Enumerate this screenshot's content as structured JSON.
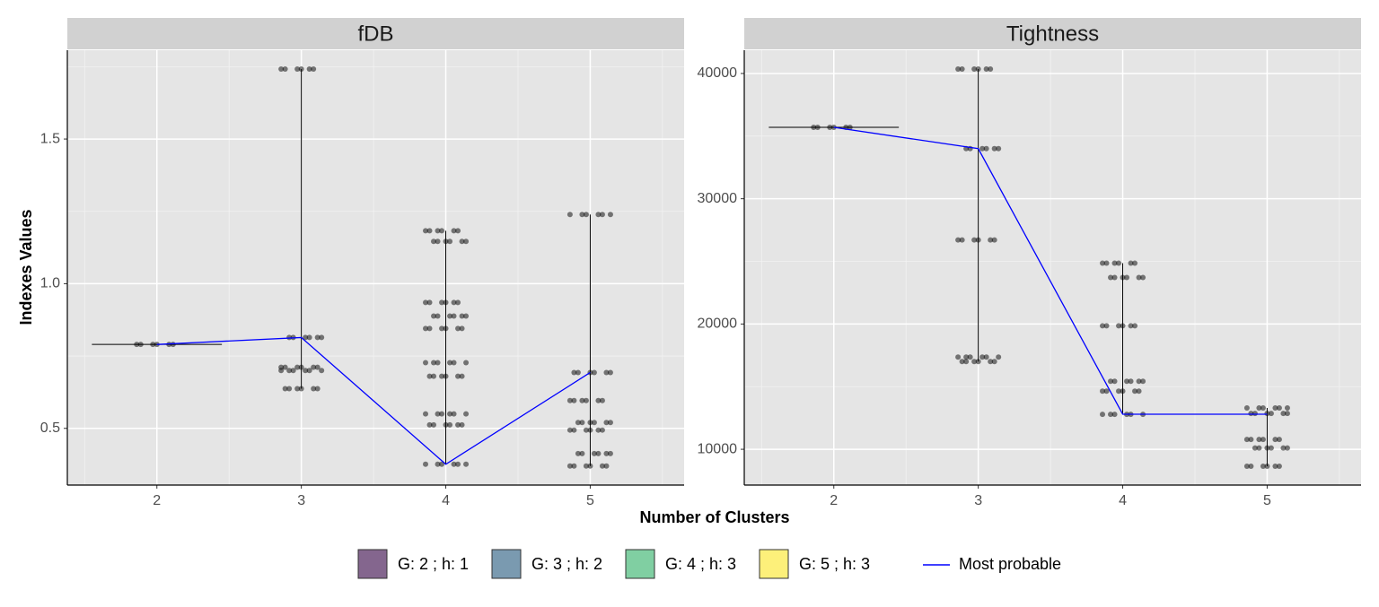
{
  "x_label": "Number of Clusters",
  "y_label": "Indexes Values",
  "legend": [
    {
      "name": "G: 2 ; h: 1",
      "color": "#84668e"
    },
    {
      "name": "G: 3 ; h: 2",
      "color": "#7a9ab0"
    },
    {
      "name": "G: 4 ; h: 3",
      "color": "#80cfa2"
    },
    {
      "name": "G: 5 ; h: 3",
      "color": "#fdf07a"
    }
  ],
  "line_legend": {
    "name": "Most probable",
    "color": "#0000ff"
  },
  "chart_data": [
    {
      "type": "strip",
      "title": "fDB",
      "x": [
        2,
        3,
        4,
        5
      ],
      "xlim": [
        1.38,
        5.65
      ],
      "xticks": [
        2,
        3,
        4,
        5
      ],
      "ylim": [
        0.304,
        1.807
      ],
      "yticks": [
        0.5,
        {
          "value": 1,
          "label": "1.0"
        },
        1.5
      ],
      "grid": true,
      "levels": [
        [
          0.79
        ],
        [
          1.742,
          0.814,
          0.711,
          0.7,
          0.637
        ],
        [
          1.183,
          1.146,
          0.935,
          0.888,
          0.845,
          0.727,
          0.68,
          0.55,
          0.512,
          0.376
        ],
        [
          1.239,
          0.693,
          0.596,
          0.52,
          0.494,
          0.413,
          0.37
        ]
      ],
      "line": {
        "name": "Most probable",
        "color": "#0000ff",
        "values": [
          0.79,
          0.814,
          0.376,
          0.693
        ]
      }
    },
    {
      "type": "strip",
      "title": "Tightness",
      "x": [
        2,
        3,
        4,
        5
      ],
      "xlim": [
        1.38,
        5.65
      ],
      "xticks": [
        2,
        3,
        4,
        5
      ],
      "ylim": [
        7143,
        41857
      ],
      "yticks": [
        10000,
        20000,
        30000,
        40000
      ],
      "grid": true,
      "levels": [
        [
          35700
        ],
        [
          40357,
          34000,
          26714,
          17357,
          17000
        ],
        [
          24857,
          23714,
          19857,
          15429,
          14643,
          12786
        ],
        [
          13300,
          12857,
          10786,
          10100,
          8643
        ]
      ],
      "line": {
        "name": "Most probable",
        "color": "#0000ff",
        "values": [
          35700,
          34000,
          12800,
          12800
        ]
      }
    }
  ]
}
